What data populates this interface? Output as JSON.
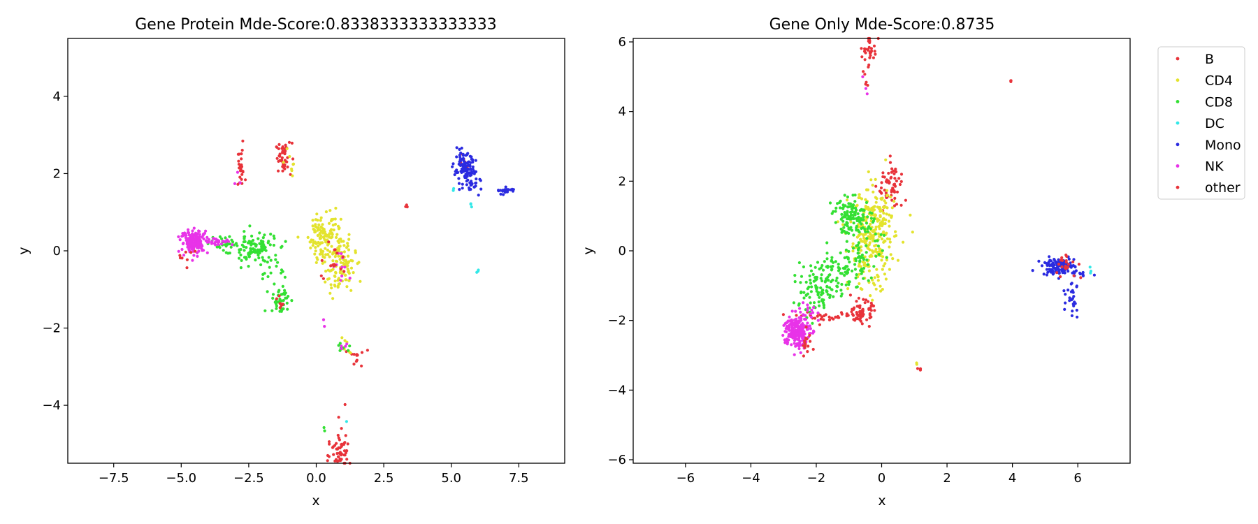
{
  "chart_data": [
    {
      "type": "scatter",
      "title": "Gene Protein Mde-Score:0.8338333333333333",
      "xlabel": "x",
      "ylabel": "y",
      "xlim": [
        -9.2,
        9.2
      ],
      "ylim": [
        -5.5,
        5.5
      ],
      "xticks": [
        -7.5,
        -5.0,
        -2.5,
        0.0,
        2.5,
        5.0,
        7.5
      ],
      "xtick_labels": [
        "−7.5",
        "−5.0",
        "−2.5",
        "0.0",
        "2.5",
        "5.0",
        "7.5"
      ],
      "yticks": [
        -4,
        -2,
        0,
        2,
        4
      ],
      "ytick_labels": [
        "−4",
        "−2",
        "0",
        "2",
        "4"
      ],
      "grid": false,
      "series": [
        {
          "name": "B",
          "color": "#e8333a",
          "clusters": [
            {
              "x": -2.8,
              "y": 2.1,
              "sx": 0.08,
              "sy": 0.25,
              "n": 25
            },
            {
              "x": -1.2,
              "y": 2.4,
              "sx": 0.15,
              "sy": 0.2,
              "n": 45
            },
            {
              "x": 0.85,
              "y": -5.2,
              "sx": 0.2,
              "sy": 0.2,
              "n": 30
            },
            {
              "x": 1.5,
              "y": -2.75,
              "sx": 0.15,
              "sy": 0.15,
              "n": 12
            },
            {
              "x": 3.35,
              "y": 1.15,
              "sx": 0.03,
              "sy": 0.02,
              "n": 3
            },
            {
              "x": 5.5,
              "y": 2.3,
              "sx": 0.08,
              "sy": 0.1,
              "n": 6
            }
          ]
        },
        {
          "name": "CD4",
          "color": "#e3e32d",
          "clusters": [
            {
              "x": 0.3,
              "y": 0.4,
              "sx": 0.3,
              "sy": 0.35,
              "n": 120
            },
            {
              "x": 0.9,
              "y": -0.4,
              "sx": 0.28,
              "sy": 0.35,
              "n": 110
            },
            {
              "x": -1.0,
              "y": 2.3,
              "sx": 0.15,
              "sy": 0.3,
              "n": 8
            },
            {
              "x": 1.2,
              "y": -2.5,
              "sx": 0.2,
              "sy": 0.15,
              "n": 8
            }
          ]
        },
        {
          "name": "CD8",
          "color": "#33e033",
          "clusters": [
            {
              "x": -3.3,
              "y": 0.2,
              "sx": 0.5,
              "sy": 0.1,
              "n": 40
            },
            {
              "x": -2.3,
              "y": 0.05,
              "sx": 0.4,
              "sy": 0.2,
              "n": 90
            },
            {
              "x": -1.3,
              "y": -1.3,
              "sx": 0.15,
              "sy": 0.2,
              "n": 40
            },
            {
              "x": -1.6,
              "y": -0.5,
              "sx": 0.25,
              "sy": 0.35,
              "n": 25
            },
            {
              "x": 1.0,
              "y": -2.5,
              "sx": 0.15,
              "sy": 0.05,
              "n": 8
            },
            {
              "x": 0.3,
              "y": -4.6,
              "sx": 0.05,
              "sy": 0.05,
              "n": 2
            }
          ]
        },
        {
          "name": "DC",
          "color": "#33e8e8",
          "clusters": [
            {
              "x": 6.0,
              "y": -0.52,
              "sx": 0.05,
              "sy": 0.03,
              "n": 3
            },
            {
              "x": 5.75,
              "y": 1.2,
              "sx": 0.03,
              "sy": 0.08,
              "n": 3
            },
            {
              "x": 1.15,
              "y": -4.45,
              "sx": 0.02,
              "sy": 0.02,
              "n": 1
            },
            {
              "x": 5.1,
              "y": 1.6,
              "sx": 0.05,
              "sy": 0.05,
              "n": 2
            }
          ]
        },
        {
          "name": "Mono",
          "color": "#2b2be0",
          "clusters": [
            {
              "x": 5.5,
              "y": 2.1,
              "sx": 0.2,
              "sy": 0.2,
              "n": 110
            },
            {
              "x": 5.85,
              "y": 1.7,
              "sx": 0.15,
              "sy": 0.1,
              "n": 15
            },
            {
              "x": 7.0,
              "y": 1.55,
              "sx": 0.18,
              "sy": 0.05,
              "n": 20
            }
          ]
        },
        {
          "name": "NK",
          "color": "#e833e8",
          "clusters": [
            {
              "x": -4.5,
              "y": 0.25,
              "sx": 0.25,
              "sy": 0.15,
              "n": 150
            },
            {
              "x": -3.7,
              "y": 0.25,
              "sx": 0.3,
              "sy": 0.05,
              "n": 30
            },
            {
              "x": -2.8,
              "y": 1.75,
              "sx": 0.1,
              "sy": 0.1,
              "n": 3
            },
            {
              "x": 0.8,
              "y": -0.3,
              "sx": 0.25,
              "sy": 0.25,
              "n": 10
            },
            {
              "x": 0.35,
              "y": -1.8,
              "sx": 0.05,
              "sy": 0.1,
              "n": 2
            },
            {
              "x": 1.0,
              "y": -2.5,
              "sx": 0.1,
              "sy": 0.05,
              "n": 4
            }
          ]
        },
        {
          "name": "other",
          "color": "#e8333a",
          "clusters": [
            {
              "x": -4.8,
              "y": -0.1,
              "sx": 0.15,
              "sy": 0.1,
              "n": 8
            },
            {
              "x": -1.3,
              "y": -1.4,
              "sx": 0.1,
              "sy": 0.15,
              "n": 8
            },
            {
              "x": 0.6,
              "y": -0.2,
              "sx": 0.25,
              "sy": 0.3,
              "n": 15
            },
            {
              "x": 0.85,
              "y": -5.35,
              "sx": 0.2,
              "sy": 0.1,
              "n": 15
            },
            {
              "x": 1.0,
              "y": -4.8,
              "sx": 0.2,
              "sy": 0.3,
              "n": 10
            }
          ]
        }
      ]
    },
    {
      "type": "scatter",
      "title": "Gene Only Mde-Score:0.8735",
      "xlabel": "x",
      "ylabel": "y",
      "xlim": [
        -7.6,
        7.6
      ],
      "ylim": [
        -6.1,
        6.1
      ],
      "xticks": [
        -6,
        -4,
        -2,
        0,
        2,
        4,
        6
      ],
      "xtick_labels": [
        "−6",
        "−4",
        "−2",
        "0",
        "2",
        "4",
        "6"
      ],
      "yticks": [
        -6,
        -4,
        -2,
        0,
        2,
        4,
        6
      ],
      "ytick_labels": [
        "−6",
        "−4",
        "−2",
        "0",
        "2",
        "4",
        "6"
      ],
      "grid": false,
      "series": [
        {
          "name": "B",
          "color": "#e8333a",
          "clusters": [
            {
              "x": -0.35,
              "y": 5.8,
              "sx": 0.1,
              "sy": 0.2,
              "n": 30
            },
            {
              "x": -0.5,
              "y": 5.1,
              "sx": 0.05,
              "sy": 0.3,
              "n": 8
            },
            {
              "x": 0.3,
              "y": 1.8,
              "sx": 0.2,
              "sy": 0.35,
              "n": 60
            },
            {
              "x": 3.95,
              "y": 4.9,
              "sx": 0.02,
              "sy": 0.02,
              "n": 3
            },
            {
              "x": 1.15,
              "y": -3.42,
              "sx": 0.05,
              "sy": 0.02,
              "n": 4
            },
            {
              "x": -1.5,
              "y": -1.9,
              "sx": 0.5,
              "sy": 0.08,
              "n": 40
            }
          ]
        },
        {
          "name": "CD4",
          "color": "#e3e32d",
          "clusters": [
            {
              "x": -0.3,
              "y": 0.3,
              "sx": 0.35,
              "sy": 0.7,
              "n": 260
            },
            {
              "x": -0.2,
              "y": 1.0,
              "sx": 0.3,
              "sy": 0.3,
              "n": 40
            },
            {
              "x": 1.05,
              "y": -3.25,
              "sx": 0.02,
              "sy": 0.02,
              "n": 2
            }
          ]
        },
        {
          "name": "CD8",
          "color": "#33e033",
          "clusters": [
            {
              "x": -0.9,
              "y": 1.0,
              "sx": 0.3,
              "sy": 0.25,
              "n": 120
            },
            {
              "x": -0.6,
              "y": 0.1,
              "sx": 0.35,
              "sy": 0.5,
              "n": 60
            },
            {
              "x": -1.3,
              "y": -0.7,
              "sx": 0.4,
              "sy": 0.3,
              "n": 80
            },
            {
              "x": -2.0,
              "y": -1.2,
              "sx": 0.35,
              "sy": 0.3,
              "n": 80
            }
          ]
        },
        {
          "name": "DC",
          "color": "#33e8e8",
          "clusters": [
            {
              "x": 6.4,
              "y": -0.55,
              "sx": 0.05,
              "sy": 0.05,
              "n": 3
            }
          ]
        },
        {
          "name": "Mono",
          "color": "#2b2be0",
          "clusters": [
            {
              "x": 5.4,
              "y": -0.45,
              "sx": 0.25,
              "sy": 0.12,
              "n": 120
            },
            {
              "x": 5.85,
              "y": -1.3,
              "sx": 0.1,
              "sy": 0.3,
              "n": 25
            },
            {
              "x": 6.1,
              "y": -0.65,
              "sx": 0.15,
              "sy": 0.04,
              "n": 10
            }
          ]
        },
        {
          "name": "NK",
          "color": "#e833e8",
          "clusters": [
            {
              "x": -2.6,
              "y": -2.3,
              "sx": 0.2,
              "sy": 0.25,
              "n": 200
            },
            {
              "x": -2.2,
              "y": -1.7,
              "sx": 0.2,
              "sy": 0.2,
              "n": 15
            },
            {
              "x": -0.5,
              "y": 4.7,
              "sx": 0.05,
              "sy": 0.1,
              "n": 3
            }
          ]
        },
        {
          "name": "other",
          "color": "#e8333a",
          "clusters": [
            {
              "x": -0.6,
              "y": -1.75,
              "sx": 0.15,
              "sy": 0.15,
              "n": 60
            },
            {
              "x": -2.3,
              "y": -2.6,
              "sx": 0.1,
              "sy": 0.2,
              "n": 15
            },
            {
              "x": 5.7,
              "y": -0.5,
              "sx": 0.2,
              "sy": 0.15,
              "n": 15
            },
            {
              "x": 5.5,
              "y": -0.2,
              "sx": 0.1,
              "sy": 0.1,
              "n": 5
            }
          ]
        }
      ]
    }
  ],
  "legend": {
    "placement": "outside upper right",
    "entries": [
      {
        "name": "B",
        "color": "#e8333a"
      },
      {
        "name": "CD4",
        "color": "#e3e32d"
      },
      {
        "name": "CD8",
        "color": "#33e033"
      },
      {
        "name": "DC",
        "color": "#33e8e8"
      },
      {
        "name": "Mono",
        "color": "#2b2be0"
      },
      {
        "name": "NK",
        "color": "#e833e8"
      },
      {
        "name": "other",
        "color": "#e8333a"
      }
    ]
  }
}
